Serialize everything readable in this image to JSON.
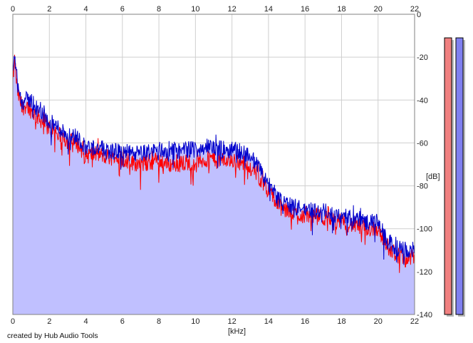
{
  "chart_data": {
    "type": "area",
    "xlabel": "[kHz]",
    "ylabel": "[dB]",
    "xlim": [
      0,
      22
    ],
    "ylim": [
      -140,
      0
    ],
    "x_ticks": [
      0,
      2,
      4,
      6,
      8,
      10,
      12,
      14,
      16,
      18,
      20,
      22
    ],
    "y_ticks": [
      0,
      -20,
      -40,
      -60,
      -80,
      -100,
      -120,
      -140
    ],
    "grid": true,
    "fill_color": "#c0c0ff",
    "series": [
      {
        "color": "#ff0000",
        "x": [
          0,
          0.1,
          0.25,
          0.5,
          0.75,
          1,
          1.5,
          2,
          2.5,
          3,
          3.5,
          4,
          4.5,
          5,
          5.5,
          6,
          6.5,
          7,
          7.5,
          8,
          8.5,
          9,
          9.5,
          10,
          10.5,
          11,
          11.5,
          12,
          12.5,
          13,
          13.5,
          14,
          14.5,
          15,
          15.5,
          16,
          16.5,
          17,
          17.5,
          18,
          18.5,
          19,
          19.5,
          20,
          20.5,
          21,
          21.5,
          22
        ],
        "y": [
          -32,
          -21,
          -36,
          -44,
          -42,
          -45,
          -49,
          -53,
          -56,
          -59,
          -60,
          -66,
          -65,
          -66,
          -67,
          -67,
          -69,
          -70,
          -69,
          -68,
          -70,
          -70,
          -69,
          -69,
          -68,
          -67,
          -68,
          -68,
          -69,
          -71,
          -76,
          -82,
          -89,
          -92,
          -93,
          -94,
          -94,
          -95,
          -96,
          -97,
          -98,
          -99,
          -100,
          -100,
          -108,
          -112,
          -114,
          -113
        ]
      },
      {
        "color": "#0000cc",
        "x": [
          0,
          0.1,
          0.25,
          0.5,
          0.75,
          1,
          1.5,
          2,
          2.5,
          3,
          3.5,
          4,
          4.5,
          5,
          5.5,
          6,
          6.5,
          7,
          7.5,
          8,
          8.5,
          9,
          9.5,
          10,
          10.5,
          11,
          11.5,
          12,
          12.5,
          13,
          13.5,
          14,
          14.5,
          15,
          15.5,
          16,
          16.5,
          17,
          17.5,
          18,
          18.5,
          19,
          19.5,
          20,
          20.5,
          21,
          21.5,
          22
        ],
        "y": [
          -28,
          -19,
          -32,
          -41,
          -40,
          -40,
          -46,
          -50,
          -53,
          -56,
          -57,
          -62,
          -62,
          -63,
          -64,
          -64,
          -65,
          -65,
          -64,
          -63,
          -64,
          -64,
          -63,
          -63,
          -62,
          -62,
          -63,
          -63,
          -64,
          -66,
          -72,
          -79,
          -86,
          -89,
          -90,
          -91,
          -91,
          -92,
          -93,
          -94,
          -95,
          -96,
          -97,
          -97,
          -106,
          -109,
          -110,
          -110
        ]
      }
    ]
  },
  "meters": [
    {
      "color": "#f08080",
      "level_db": -11
    },
    {
      "color": "#8080f0",
      "level_db": -11
    }
  ],
  "credit": "created by Hub Audio Tools"
}
